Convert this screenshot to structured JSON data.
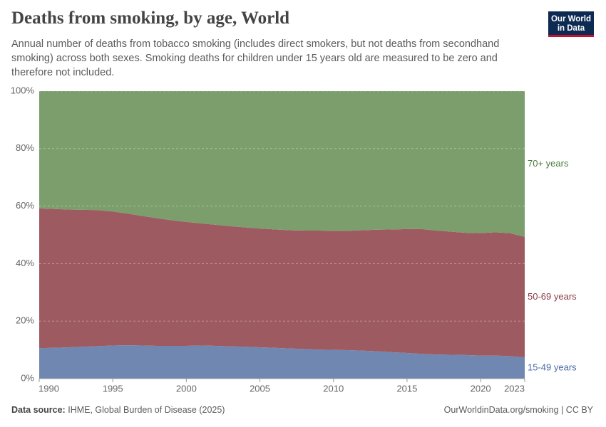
{
  "header": {
    "title": "Deaths from smoking, by age, World",
    "subtitle": "Annual number of deaths from tobacco smoking (includes direct smokers, but not deaths from secondhand smoking) across both sexes. Smoking deaths for children under 15 years old are measured to be zero and therefore not included.",
    "logo": [
      "Our World",
      "in Data"
    ]
  },
  "chart_data": {
    "type": "stacked-area",
    "x": [
      1990,
      1991,
      1992,
      1993,
      1994,
      1995,
      1996,
      1997,
      1998,
      1999,
      2000,
      2001,
      2002,
      2003,
      2004,
      2005,
      2006,
      2007,
      2008,
      2009,
      2010,
      2011,
      2012,
      2013,
      2014,
      2015,
      2016,
      2017,
      2018,
      2019,
      2020,
      2021,
      2022,
      2023
    ],
    "series": [
      {
        "name": "15-49 years",
        "color": "#7088b1",
        "label_color": "#4a6aa8",
        "values": [
          10.6,
          10.7,
          10.9,
          11.1,
          11.3,
          11.5,
          11.6,
          11.5,
          11.4,
          11.4,
          11.4,
          11.5,
          11.4,
          11.2,
          11.1,
          10.9,
          10.7,
          10.5,
          10.3,
          10.1,
          10.0,
          9.9,
          9.7,
          9.5,
          9.2,
          8.9,
          8.6,
          8.4,
          8.3,
          8.2,
          8.0,
          8.0,
          7.8,
          7.4
        ]
      },
      {
        "name": "50-69 years",
        "color": "#9e5a61",
        "label_color": "#8c3b45",
        "values": [
          48.6,
          48.3,
          47.9,
          47.6,
          47.3,
          46.6,
          45.8,
          45.1,
          44.4,
          43.7,
          43.1,
          42.5,
          42.1,
          41.8,
          41.5,
          41.3,
          41.2,
          41.1,
          41.2,
          41.4,
          41.4,
          41.5,
          41.9,
          42.3,
          42.7,
          43.1,
          43.4,
          43.1,
          42.8,
          42.5,
          42.6,
          42.9,
          42.8,
          41.9
        ]
      },
      {
        "name": "70+ years",
        "color": "#7b9e6c",
        "label_color": "#4c7c3c",
        "values": [
          40.8,
          41.0,
          41.2,
          41.3,
          41.4,
          41.9,
          42.6,
          43.4,
          44.2,
          44.9,
          45.5,
          46.0,
          46.5,
          47.0,
          47.4,
          47.8,
          48.1,
          48.4,
          48.5,
          48.5,
          48.6,
          48.6,
          48.4,
          48.2,
          48.1,
          48.0,
          48.0,
          48.5,
          48.9,
          49.3,
          49.4,
          49.1,
          49.4,
          50.7
        ]
      }
    ],
    "xlim": [
      1990,
      2023
    ],
    "xticks": [
      1990,
      1995,
      2000,
      2005,
      2010,
      2015,
      2020,
      2023
    ],
    "ylim": [
      0,
      100
    ],
    "yticks": [
      {
        "value": 0,
        "label": "0%"
      },
      {
        "value": 20,
        "label": "20%"
      },
      {
        "value": 40,
        "label": "40%"
      },
      {
        "value": 60,
        "label": "60%"
      },
      {
        "value": 80,
        "label": "80%"
      },
      {
        "value": 100,
        "label": "100%"
      }
    ],
    "grid": true
  },
  "footer": {
    "source_label": "Data source:",
    "source": "IHME, Global Burden of Disease (2025)",
    "credit": "OurWorldinData.org/smoking | CC BY"
  }
}
